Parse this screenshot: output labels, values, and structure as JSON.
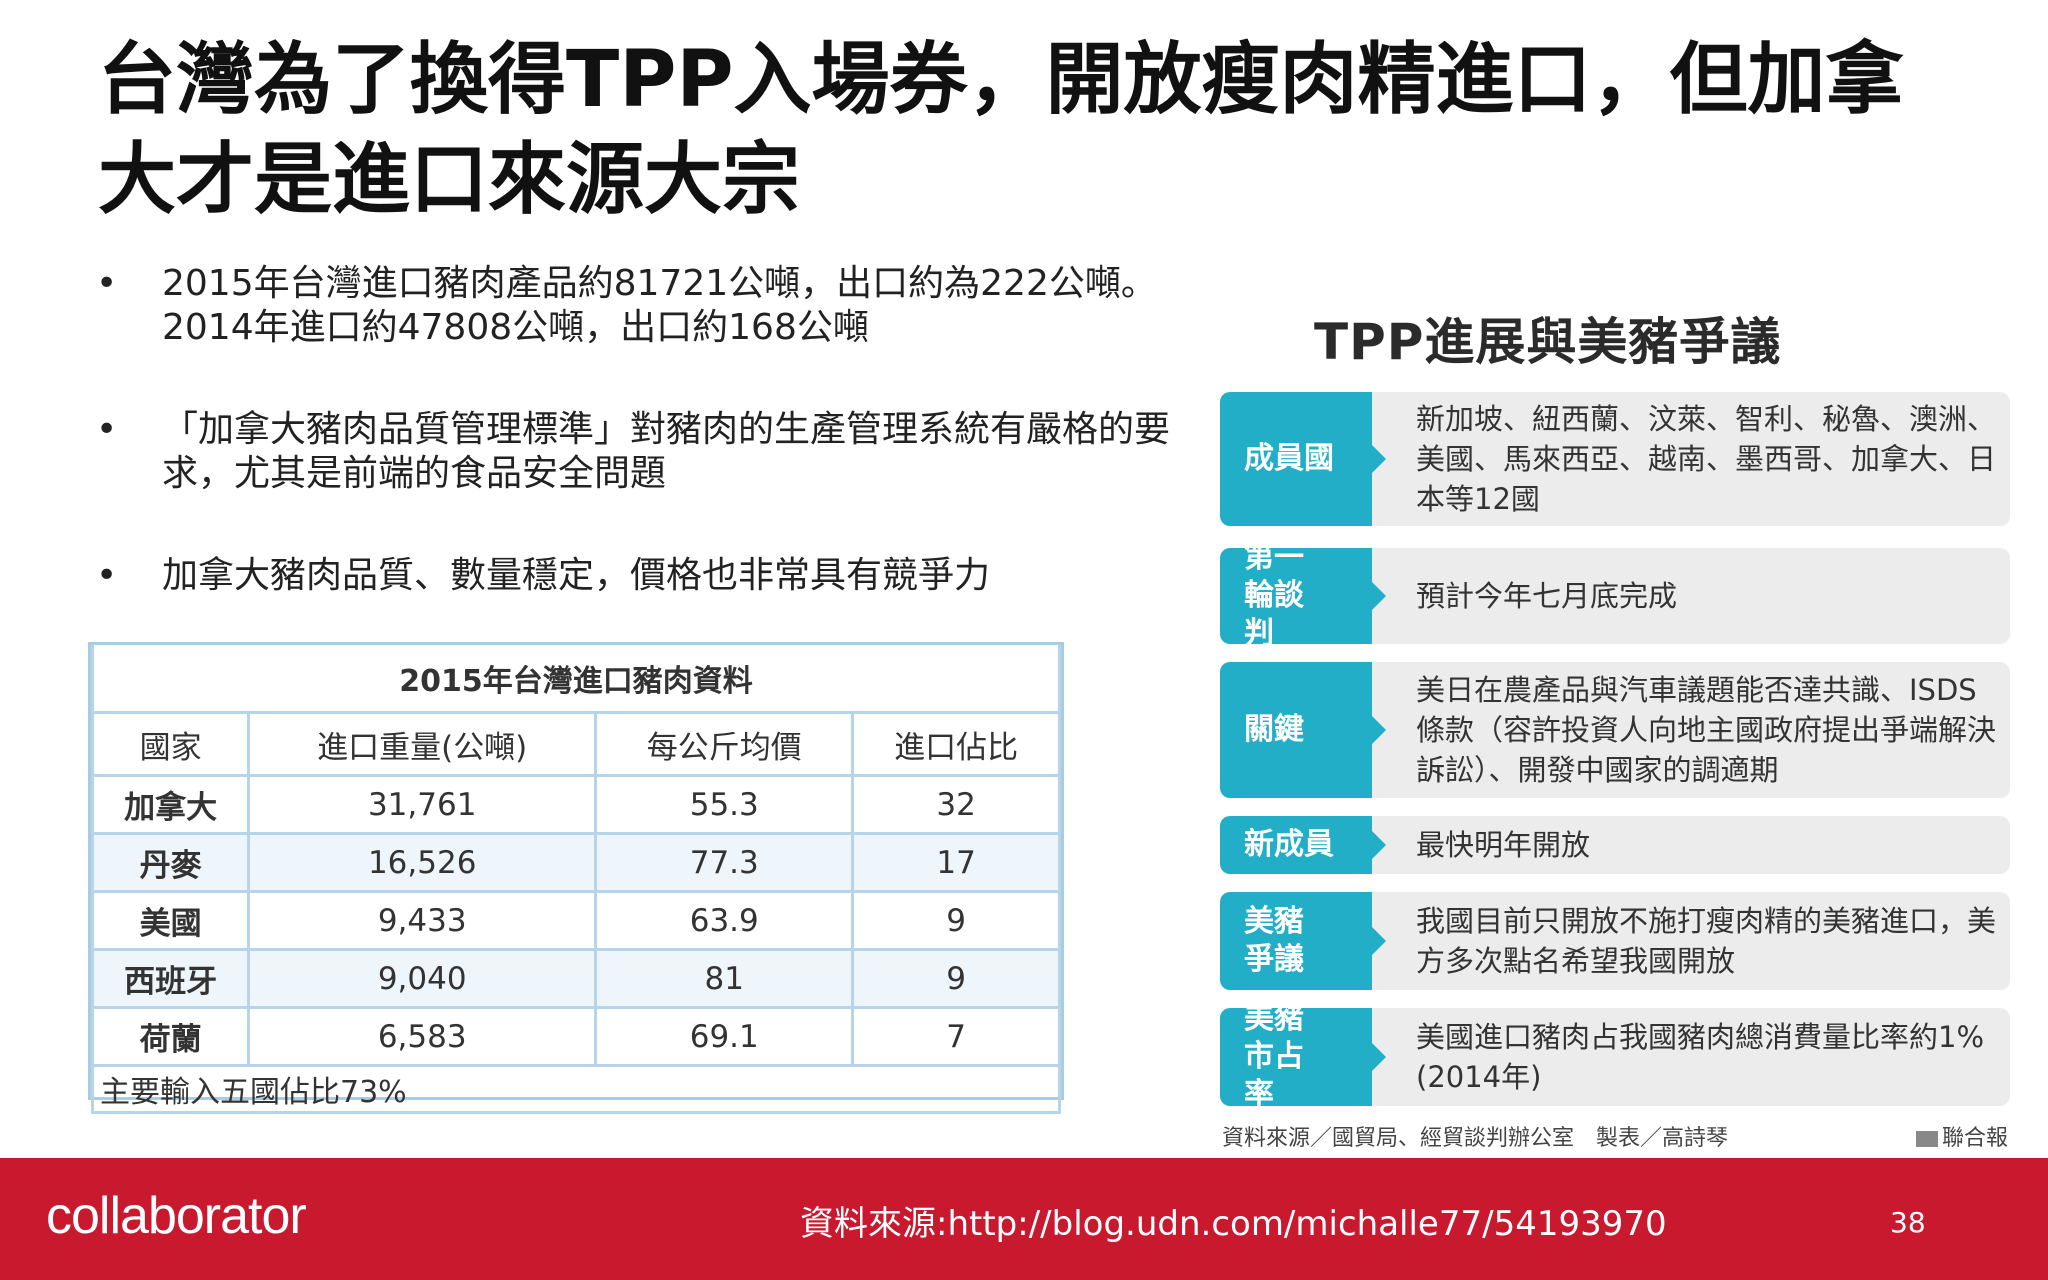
{
  "title": {
    "line1": "台灣為了換得TPP入場券，開放瘦肉精進口，但加拿",
    "line2": "大才是進口來源大宗"
  },
  "bullets": [
    "2015年台灣進口豬肉產品約81721公噸，出口約為222公噸。2014年進口約47808公噸，出口約168公噸",
    "「加拿大豬肉品質管理標準」對豬肉的生產管理系統有嚴格的要求，尤其是前端的食品安全問題",
    "加拿大豬肉品質、數量穩定，價格也非常具有競爭力"
  ],
  "import_table": {
    "caption": "2015年台灣進口豬肉資料",
    "headers": [
      "國家",
      "進口重量(公噸)",
      "每公斤均價",
      "進口佔比"
    ],
    "rows": [
      [
        "加拿大",
        "31,761",
        "55.3",
        "32"
      ],
      [
        "丹麥",
        "16,526",
        "77.3",
        "17"
      ],
      [
        "美國",
        "9,433",
        "63.9",
        "9"
      ],
      [
        "西班牙",
        "9,040",
        "81",
        "9"
      ],
      [
        "荷蘭",
        "6,583",
        "69.1",
        "7"
      ]
    ],
    "footer": "主要輸入五國佔比73%"
  },
  "tpp": {
    "title": "TPP進展與美豬爭議",
    "rows": [
      {
        "label": "成員國",
        "desc": "新加坡、紐西蘭、汶萊、智利、秘魯、澳洲、美國、馬來西亞、越南、墨西哥、加拿大、日本等12國"
      },
      {
        "label": "第一輪談判",
        "desc": "預計今年七月底完成"
      },
      {
        "label": "關鍵",
        "desc": "美日在農產品與汽車議題能否達共識、ISDS條款（容許投資人向地主國政府提出爭端解決訴訟）、開發中國家的調適期"
      },
      {
        "label": "新成員",
        "desc": "最快明年開放"
      },
      {
        "label": "美豬爭議",
        "desc": "我國目前只開放不施打瘦肉精的美豬進口，美方多次點名希望我國開放"
      },
      {
        "label": "美豬市占率",
        "desc": "美國進口豬肉占我國豬肉總消費量比率約1%(2014年)"
      }
    ],
    "source": "資料來源／國貿局、經貿談判辦公室　製表／高詩琴",
    "brand": "聯合報"
  },
  "footer": {
    "logo": "collaborator",
    "source": "資料來源:http://blog.udn.com/michalle77/54193970",
    "page": "38"
  },
  "colors": {
    "accent_teal": "#22aec7",
    "footer_red": "#c8192f"
  }
}
